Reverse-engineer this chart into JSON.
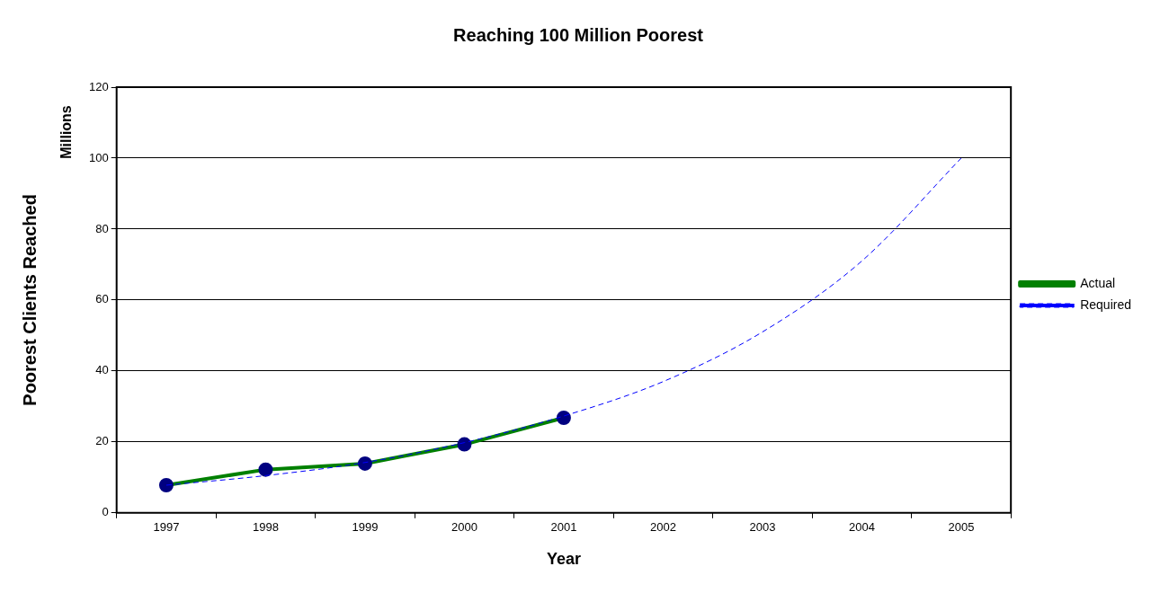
{
  "chart_data": {
    "type": "line",
    "title": "Reaching 100 Million Poorest",
    "xlabel": "Year",
    "ylabel": "Poorest Clients Reached",
    "annotations": [
      "Millions"
    ],
    "categories": [
      "1997",
      "1998",
      "1999",
      "2000",
      "2001",
      "2002",
      "2003",
      "2004",
      "2005"
    ],
    "series": [
      {
        "name": "Actual",
        "color": "#008000",
        "marker": "circle",
        "line_style": "solid",
        "values": [
          7.8,
          12.2,
          13.9,
          19.3,
          26.8,
          null,
          null,
          null,
          null
        ]
      },
      {
        "name": "Required",
        "color": "#0000ff",
        "marker": "none",
        "line_style": "dashed",
        "values": [
          7.8,
          10.5,
          14.2,
          19.8,
          27.3,
          37,
          51,
          71,
          100
        ]
      }
    ],
    "ylim": [
      0,
      120
    ],
    "yticks": [
      0,
      20,
      40,
      60,
      80,
      100,
      120
    ],
    "grid": "y",
    "legend": "right"
  }
}
